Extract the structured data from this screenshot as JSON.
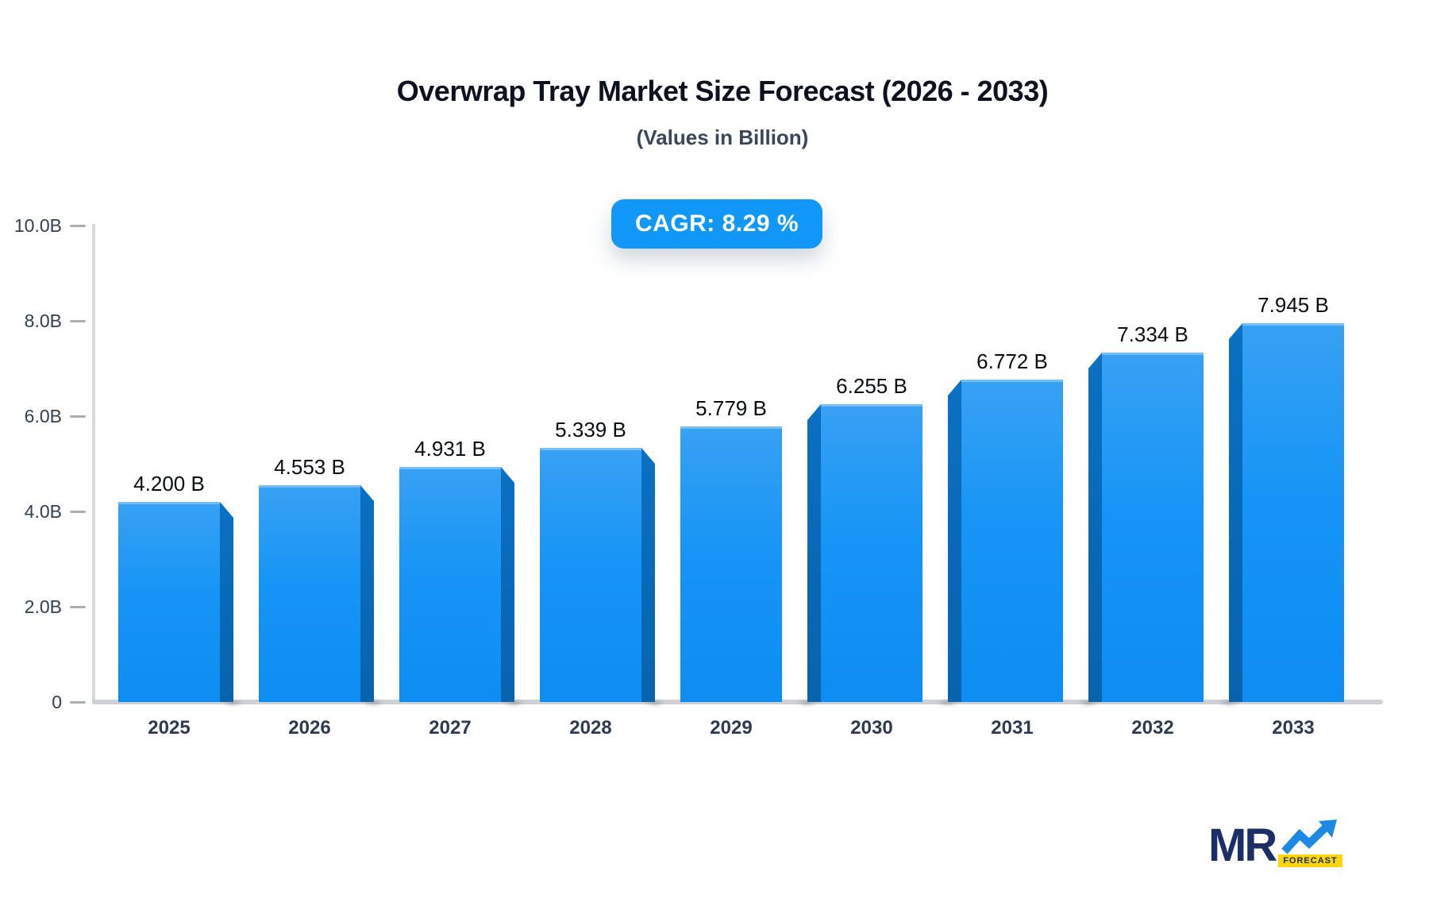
{
  "header": {
    "title": "Overwrap Tray Market Size Forecast (2026 - 2033)",
    "subtitle": "(Values in Billion)"
  },
  "badge": {
    "label": "CAGR: 8.29 %",
    "background": "#1197f7",
    "text_color": "#ffffff"
  },
  "chart_data": {
    "type": "bar",
    "title": "Overwrap Tray Market Size Forecast (2026 - 2033)",
    "subtitle": "(Values in Billion)",
    "categories": [
      "2025",
      "2026",
      "2027",
      "2028",
      "2029",
      "2030",
      "2031",
      "2032",
      "2033"
    ],
    "values": [
      4.2,
      4.553,
      4.931,
      5.339,
      5.779,
      6.255,
      6.772,
      7.334,
      7.945
    ],
    "value_labels": [
      "4.200 B",
      "4.553 B",
      "4.931 B",
      "5.339 B",
      "5.779 B",
      "6.255 B",
      "6.772 B",
      "7.334 B",
      "7.945 B"
    ],
    "y_ticks": [
      {
        "label": "10.0B",
        "value": 10
      },
      {
        "label": "8.0B",
        "value": 8
      },
      {
        "label": "6.0B",
        "value": 6
      },
      {
        "label": "4.0B",
        "value": 4
      },
      {
        "label": "2.0B",
        "value": 2
      },
      {
        "label": "0",
        "value": 0
      }
    ],
    "ylim": [
      0,
      10
    ],
    "xlabel": "",
    "ylabel": "",
    "grid": false,
    "legend": false,
    "annotation": "CAGR: 8.29 %",
    "bar_face_color": "#1594f4",
    "bar_side_color": "#0a6dbd",
    "axis_color": "#d5d8dd"
  },
  "logo": {
    "text": "MR",
    "sub_text": "FORECAST",
    "navy": "#1b2f66",
    "blue": "#1e88e5",
    "yellow": "#ffd60a"
  }
}
